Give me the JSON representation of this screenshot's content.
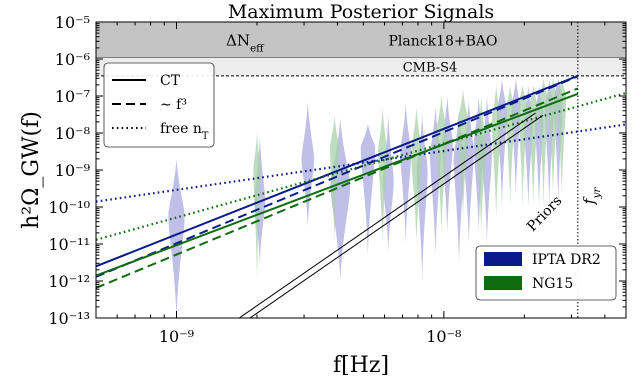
{
  "chart_data": {
    "type": "line",
    "title": "Maximum Posterior Signals",
    "xlabel": "f[Hz]",
    "ylabel": "h²Ω_GW(f)",
    "x_scale": "log",
    "y_scale": "log",
    "xlim": [
      5e-10,
      4.8e-08
    ],
    "ylim": [
      1e-13,
      1e-05
    ],
    "x_ticks": [
      {
        "value": 1e-09,
        "label": "10⁻⁹"
      },
      {
        "value": 1e-08,
        "label": "10⁻⁸"
      }
    ],
    "y_ticks": [
      {
        "value": 1e-13,
        "label": "10⁻¹³"
      },
      {
        "value": 1e-12,
        "label": "10⁻¹²"
      },
      {
        "value": 1e-11,
        "label": "10⁻¹¹"
      },
      {
        "value": 1e-10,
        "label": "10⁻¹⁰"
      },
      {
        "value": 1e-09,
        "label": "10⁻⁹"
      },
      {
        "value": 1e-08,
        "label": "10⁻⁸"
      },
      {
        "value": 1e-07,
        "label": "10⁻⁷"
      },
      {
        "value": 1e-06,
        "label": "10⁻⁶"
      },
      {
        "value": 1e-05,
        "label": "10⁻⁵"
      }
    ],
    "bands": [
      {
        "label": "ΔN",
        "label_sub": "eff",
        "right_label": "Planck18+BAO",
        "y_min": 1.1e-06,
        "y_max": 1e-05,
        "color": "#c4c4c4"
      },
      {
        "label": "CMB-S4",
        "y_min": 3.5e-07,
        "y_max": 1.1e-06,
        "color": "#ededed"
      }
    ],
    "vline": {
      "x": 3.17e-08,
      "label": "f",
      "label_sub": "yr"
    },
    "priors": {
      "label": "Priors",
      "lines": [
        [
          1.55e-09,
          2.2e-08
        ],
        [
          1.7e-09,
          2.35e-08
        ]
      ],
      "slope": 5
    },
    "series": [
      {
        "name": "IPTA DR2",
        "color": "#0a1a8c",
        "violin_color": "#a9a9e0",
        "lines": [
          {
            "style": "solid",
            "y_at_xmin": 2.5e-12,
            "y_at_xmax": 3.5e-07,
            "x_end": 3.17e-08
          },
          {
            "style": "dashed",
            "y_at_xmin": 1.3e-12,
            "y_at_xmax": 3.4e-07,
            "x_end": 3.17e-08
          },
          {
            "style": "dotted",
            "y_at_xmin": 1.4e-10,
            "y_at_xmax": 1.7e-08,
            "x_end": 4.8e-08
          }
        ],
        "violins": [
          {
            "x": 1e-09,
            "center": 6e-11,
            "low": 1e-13,
            "high": 2e-09,
            "width": 0.18
          },
          {
            "x": 2.05e-09,
            "center": 1.5e-10,
            "low": 3e-12,
            "high": 8e-09,
            "width": 0.12
          },
          {
            "x": 3.1e-09,
            "center": 2e-09,
            "low": 3e-11,
            "high": 7e-08,
            "width": 0.14
          },
          {
            "x": 4.1e-09,
            "center": 4e-10,
            "low": 1e-12,
            "high": 2.5e-08,
            "width": 0.22
          },
          {
            "x": 5.2e-09,
            "center": 4e-09,
            "low": 5e-12,
            "high": 1.8e-08,
            "width": 0.16
          },
          {
            "x": 6.2e-09,
            "center": 5e-10,
            "low": 6e-12,
            "high": 3e-08,
            "width": 0.12
          },
          {
            "x": 7.2e-09,
            "center": 3e-09,
            "low": 1e-11,
            "high": 6e-08,
            "width": 0.12
          },
          {
            "x": 8.3e-09,
            "center": 1e-09,
            "low": 1e-12,
            "high": 3e-08,
            "width": 0.12
          },
          {
            "x": 9.3e-09,
            "center": 2.5e-09,
            "low": 5e-12,
            "high": 5e-08,
            "width": 0.12
          },
          {
            "x": 1.03e-08,
            "center": 5e-09,
            "low": 2e-11,
            "high": 1e-07,
            "width": 0.12
          },
          {
            "x": 1.14e-08,
            "center": 2e-09,
            "low": 3e-12,
            "high": 4e-08,
            "width": 0.12
          },
          {
            "x": 1.24e-08,
            "center": 3e-09,
            "low": 1e-11,
            "high": 8e-08,
            "width": 0.11
          },
          {
            "x": 1.35e-08,
            "center": 5e-09,
            "low": 2e-11,
            "high": 1e-07,
            "width": 0.11
          },
          {
            "x": 1.45e-08,
            "center": 3e-09,
            "low": 1e-11,
            "high": 1e-07,
            "width": 0.11
          },
          {
            "x": 1.65e-08,
            "center": 4e-08,
            "low": 1e-10,
            "high": 3e-07,
            "width": 0.11
          },
          {
            "x": 1.86e-08,
            "center": 5e-08,
            "low": 2e-10,
            "high": 3e-07,
            "width": 0.1
          },
          {
            "x": 2.07e-08,
            "center": 2e-08,
            "low": 1e-10,
            "high": 2e-07,
            "width": 0.1
          },
          {
            "x": 2.27e-08,
            "center": 3e-08,
            "low": 1e-10,
            "high": 2e-07,
            "width": 0.1
          },
          {
            "x": 2.48e-08,
            "center": 5e-08,
            "low": 1e-10,
            "high": 3e-07,
            "width": 0.1
          },
          {
            "x": 2.68e-08,
            "center": 1e-07,
            "low": 1e-10,
            "high": 3e-07,
            "width": 0.1
          }
        ]
      },
      {
        "name": "NG15",
        "color": "#0e6b0e",
        "violin_color": "#a8d1a8",
        "lines": [
          {
            "style": "solid",
            "y_at_xmin": 1.4e-12,
            "y_at_xmax": 1.15e-07,
            "x_end": 3.17e-08
          },
          {
            "style": "dashed",
            "y_at_xmin": 6.5e-13,
            "y_at_xmax": 1.6e-07,
            "x_end": 3.17e-08
          },
          {
            "style": "dotted",
            "y_at_xmin": 1.3e-11,
            "y_at_xmax": 1.2e-07,
            "x_end": 4.8e-08
          }
        ],
        "violins": [
          {
            "x": 2e-09,
            "center": 1e-09,
            "low": 1e-12,
            "high": 1e-08,
            "width": 0.08
          },
          {
            "x": 3.9e-09,
            "center": 4e-09,
            "low": 1e-11,
            "high": 3e-08,
            "width": 0.1
          },
          {
            "x": 5.9e-09,
            "center": 3e-09,
            "low": 1e-11,
            "high": 5e-08,
            "width": 0.1
          },
          {
            "x": 7.9e-09,
            "center": 3e-09,
            "low": 1e-11,
            "high": 5e-08,
            "width": 0.12
          },
          {
            "x": 9.8e-09,
            "center": 1e-08,
            "low": 2e-11,
            "high": 1e-07,
            "width": 0.12
          },
          {
            "x": 1.18e-08,
            "center": 2e-08,
            "low": 5e-11,
            "high": 1.5e-07,
            "width": 0.12
          },
          {
            "x": 1.38e-08,
            "center": 5e-09,
            "low": 2e-11,
            "high": 1e-07,
            "width": 0.1
          },
          {
            "x": 1.57e-08,
            "center": 2e-08,
            "low": 5e-11,
            "high": 2e-07,
            "width": 0.1
          },
          {
            "x": 1.77e-08,
            "center": 4e-08,
            "low": 1e-10,
            "high": 2e-07,
            "width": 0.1
          },
          {
            "x": 1.97e-08,
            "center": 6e-08,
            "low": 1e-10,
            "high": 2e-07,
            "width": 0.1
          },
          {
            "x": 2.16e-08,
            "center": 5e-08,
            "low": 1e-10,
            "high": 2e-07,
            "width": 0.1
          },
          {
            "x": 2.36e-08,
            "center": 8e-08,
            "low": 1e-10,
            "high": 3e-07,
            "width": 0.1
          },
          {
            "x": 2.56e-08,
            "center": 8e-08,
            "low": 2e-10,
            "high": 3e-07,
            "width": 0.1
          },
          {
            "x": 2.76e-08,
            "center": 1e-07,
            "low": 2e-10,
            "high": 3e-07,
            "width": 0.1
          }
        ]
      }
    ],
    "style_legend": {
      "placement": "upper-left",
      "entries": [
        {
          "style": "solid",
          "label": "CT"
        },
        {
          "style": "dashed",
          "label": "∼ f³"
        },
        {
          "style": "dotted",
          "label": "free n",
          "label_sub": "T"
        }
      ]
    },
    "color_legend": {
      "placement": "lower-right",
      "entries": [
        "IPTA DR2",
        "NG15"
      ]
    }
  }
}
